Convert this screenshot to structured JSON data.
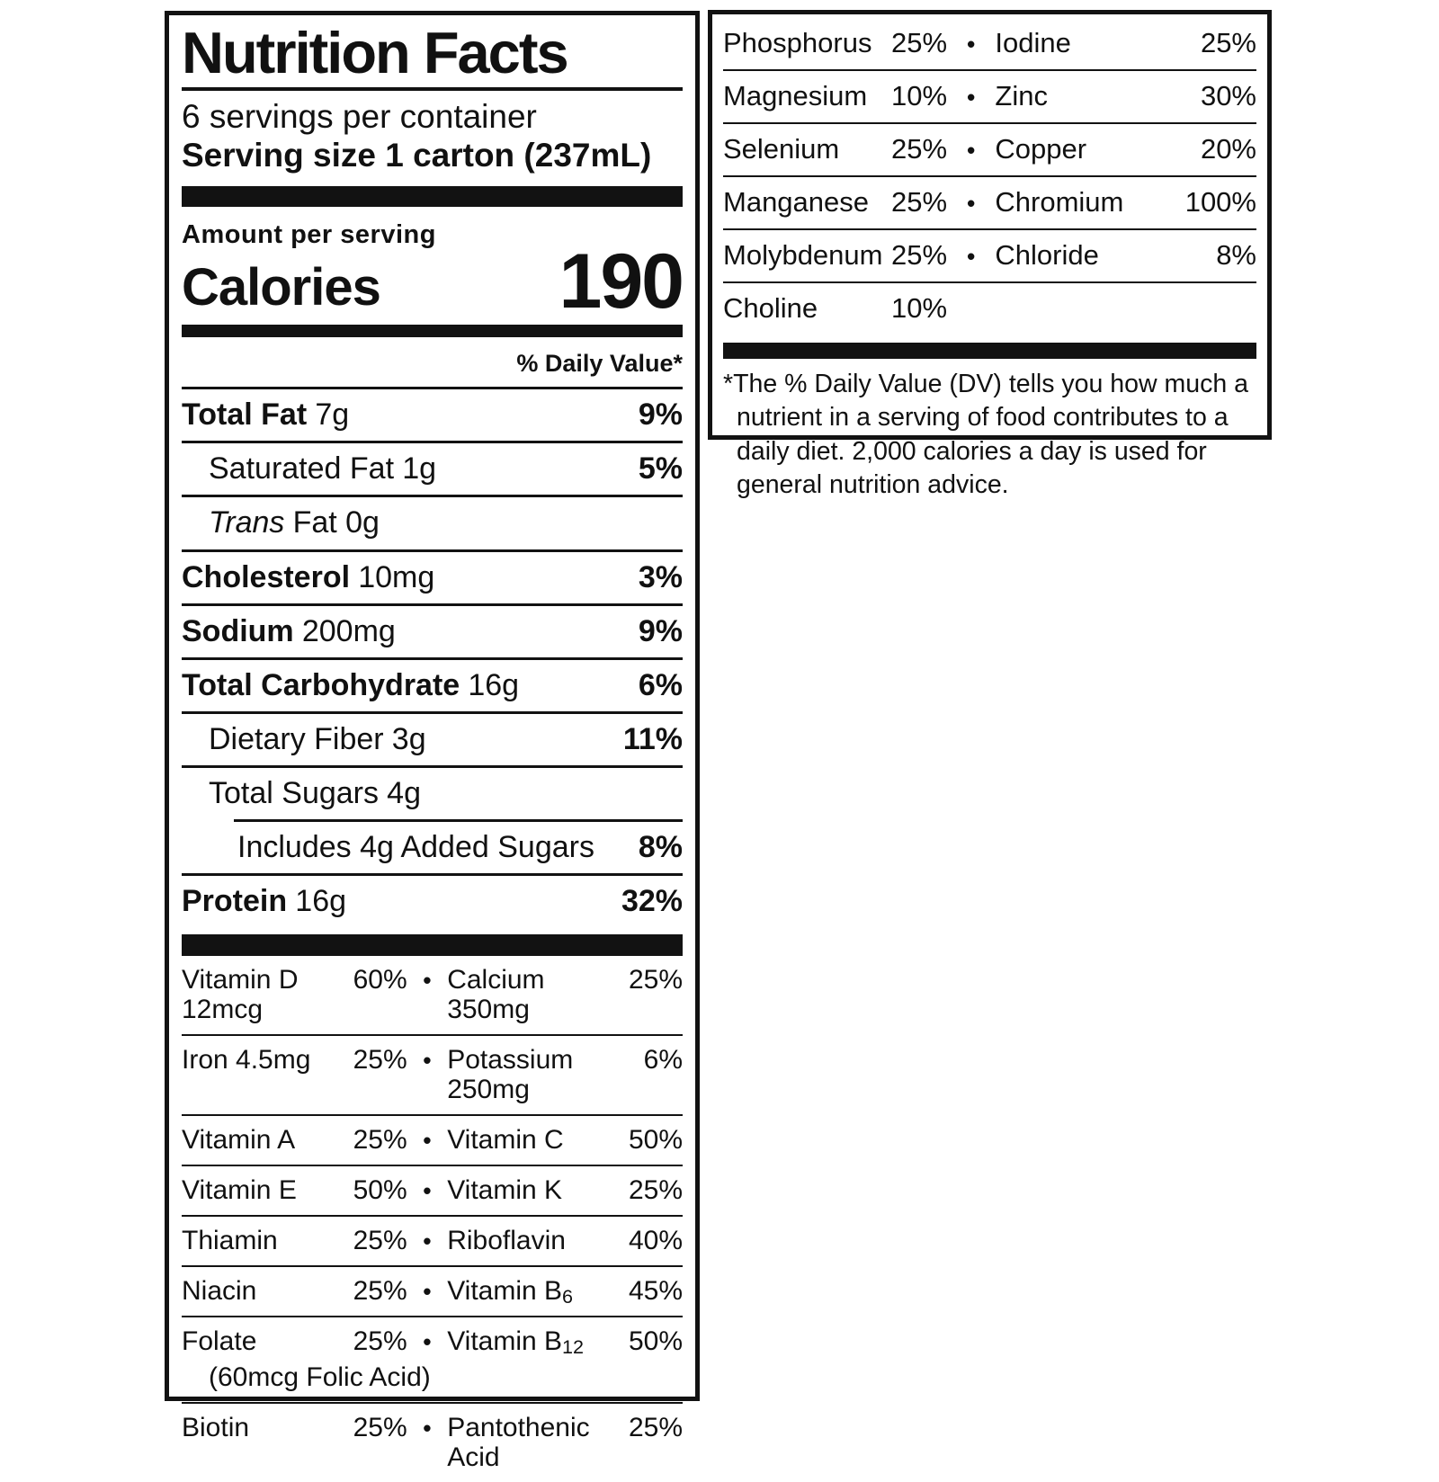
{
  "glyphs": {
    "bullet": "•"
  },
  "left_panel": {
    "title": "Nutrition Facts",
    "servings_per_container": "6 servings per container",
    "serving_size": "Serving size 1 carton (237mL)",
    "amount_per_serving": "Amount per serving",
    "calories_label": "Calories",
    "calories_value": "190",
    "daily_value_header": "% Daily Value*",
    "nutrients": [
      {
        "name": "Total Fat",
        "amount": "7g",
        "dv": "9%"
      },
      {
        "name": "Saturated Fat",
        "amount": "1g",
        "dv": "5%"
      },
      {
        "name": "Trans",
        "amount": "Fat 0g",
        "dv": ""
      },
      {
        "name": "Cholesterol",
        "amount": "10mg",
        "dv": "3%"
      },
      {
        "name": "Sodium",
        "amount": "200mg",
        "dv": "9%"
      },
      {
        "name": "Total Carbohydrate",
        "amount": "16g",
        "dv": "6%"
      },
      {
        "name": "Dietary Fiber",
        "amount": "3g",
        "dv": "11%"
      },
      {
        "name": "Total Sugars",
        "amount": "4g",
        "dv": ""
      },
      {
        "name": "Includes 4g Added Sugars",
        "amount": "",
        "dv": "8%"
      },
      {
        "name": "Protein",
        "amount": "16g",
        "dv": "32%"
      }
    ],
    "micronutrients": [
      {
        "n1": "Vitamin D 12mcg",
        "v1": "60%",
        "n2": "Calcium 350mg",
        "v2": "25%"
      },
      {
        "n1": "Iron 4.5mg",
        "v1": "25%",
        "n2": "Potassium 250mg",
        "v2": "6%"
      },
      {
        "n1": "Vitamin A",
        "v1": "25%",
        "n2": "Vitamin C",
        "v2": "50%"
      },
      {
        "n1": "Vitamin E",
        "v1": "50%",
        "n2": "Vitamin K",
        "v2": "25%"
      },
      {
        "n1": "Thiamin",
        "v1": "25%",
        "n2": "Riboflavin",
        "v2": "40%"
      },
      {
        "n1": "Niacin",
        "v1": "25%",
        "n2": "Vitamin B",
        "sub2": "6",
        "v2": "45%"
      },
      {
        "n1": "Folate",
        "v1": "25%",
        "n2": "Vitamin B",
        "sub2": "12",
        "v2": "50%",
        "note": "(60mcg Folic Acid)"
      },
      {
        "n1": "Biotin",
        "v1": "25%",
        "n2": "Pantothenic Acid",
        "v2": "25%"
      }
    ]
  },
  "right_panel": {
    "minerals": [
      {
        "n1": "Phosphorus",
        "v1": "25%",
        "n2": "Iodine",
        "v2": "25%"
      },
      {
        "n1": "Magnesium",
        "v1": "10%",
        "n2": "Zinc",
        "v2": "30%"
      },
      {
        "n1": "Selenium",
        "v1": "25%",
        "n2": "Copper",
        "v2": "20%"
      },
      {
        "n1": "Manganese",
        "v1": "25%",
        "n2": "Chromium",
        "v2": "100%"
      },
      {
        "n1": "Molybdenum",
        "v1": "25%",
        "n2": "Chloride",
        "v2": "8%"
      },
      {
        "n1": "Choline",
        "v1": "10%",
        "n2": "",
        "v2": ""
      }
    ],
    "footnote": "*The % Daily Value (DV) tells you how much a nutrient in a serving of food contributes to a daily diet. 2,000 calories a day is used for general nutrition advice."
  }
}
